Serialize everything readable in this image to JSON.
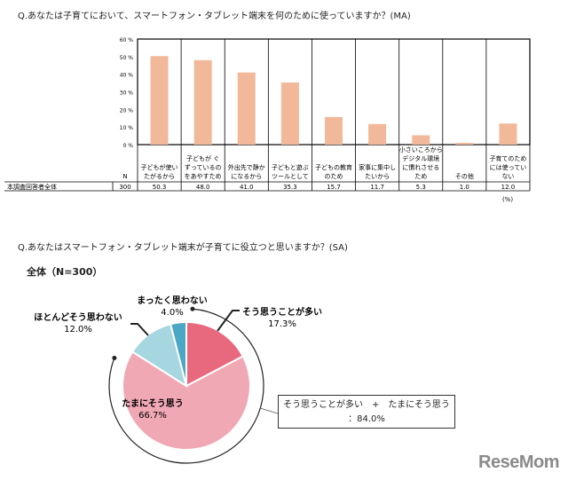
{
  "q1_title": "Q.あなたは子育てにおいて、スマートフォン・タブレット端末を何のために使っていますか？(MA)",
  "q2_title": "Q.あなたはスマートフォン・タブレット端末が子育てに役立つと思いますか？(SA)",
  "logo": "ReseMom",
  "chart_data": [
    {
      "type": "bar",
      "ylim": [
        0,
        60
      ],
      "yticks": [
        "0 %",
        "10 %",
        "20 %",
        "30 %",
        "40 %",
        "50 %",
        "60 %"
      ],
      "categories": [
        [
          "子どもが使い",
          "たがるから"
        ],
        [
          "子どもが ぐ",
          "ずっているの",
          "をあやすため"
        ],
        [
          "外出先で静か",
          "になるから"
        ],
        [
          "子どもと遊ぶ",
          "ツールとして"
        ],
        [
          "子どもの教育",
          "のため"
        ],
        [
          "家事に集中し",
          "たいから"
        ],
        [
          "小さいころから",
          "デジタル環境",
          "に慣れさせる",
          "ため"
        ],
        [
          "その他"
        ],
        [
          "子育てのため",
          "には使ってい",
          "ない"
        ]
      ],
      "row_label": "本調査回答者全体",
      "n_header": "N",
      "n_value": "300",
      "values": [
        50.3,
        48.0,
        41.0,
        35.3,
        15.7,
        11.7,
        5.3,
        1.0,
        12.0
      ],
      "value_labels": [
        "50.3",
        "48.0",
        "41.0",
        "35.3",
        "15.7",
        "11.7",
        "5.3",
        "1.0",
        "12.0"
      ],
      "unit_note": "(%)",
      "bar_color": "#f2b89a"
    },
    {
      "type": "pie",
      "title": "全体（N=300）",
      "slices": [
        {
          "label": "そう思うことが多い",
          "value": 17.3,
          "value_label": "17.3%",
          "color": "#e8697e"
        },
        {
          "label": "たまにそう思う",
          "value": 66.7,
          "value_label": "66.7%",
          "color": "#f0a8b4"
        },
        {
          "label": "ほとんどそう思わない",
          "value": 12.0,
          "value_label": "12.0%",
          "color": "#a6d6e0"
        },
        {
          "label": "まったく思わない",
          "value": 4.0,
          "value_label": "4.0%",
          "color": "#4aa7c5"
        }
      ],
      "annotation": {
        "line1": "そう思うことが多い　+　たまにそう思う",
        "line2": "：84.0%"
      }
    }
  ]
}
